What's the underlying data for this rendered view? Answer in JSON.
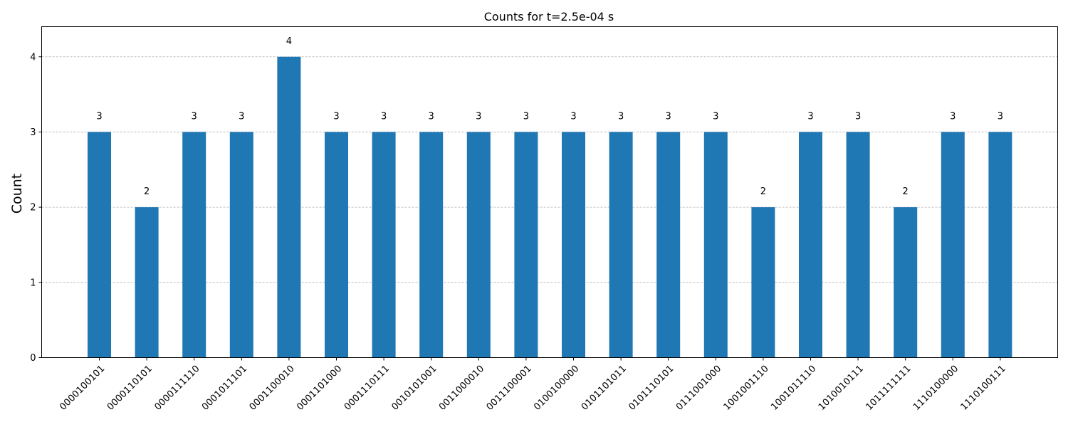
{
  "chart_data": {
    "type": "bar",
    "title": "Counts for t=2.5e-04 s",
    "xlabel": "",
    "ylabel": "Count",
    "categories": [
      "0000100101",
      "0000110101",
      "0000111110",
      "0001011101",
      "0001100010",
      "0001101000",
      "0001110111",
      "0010101001",
      "0011000010",
      "0011100001",
      "0100100000",
      "0101101011",
      "0101110101",
      "0111001000",
      "1001001110",
      "1001011110",
      "1010010111",
      "1011111111",
      "1110100000",
      "1110100111"
    ],
    "values": [
      3,
      2,
      3,
      3,
      4,
      3,
      3,
      3,
      3,
      3,
      3,
      3,
      3,
      3,
      2,
      3,
      3,
      2,
      3,
      3
    ],
    "ylim": [
      0,
      4.4
    ],
    "yticks": [
      0,
      1,
      2,
      3,
      4
    ],
    "grid": "y-dashed",
    "bar_color": "#1f77b4",
    "data_labels": [
      "3",
      "2",
      "3",
      "3",
      "4",
      "3",
      "3",
      "3",
      "3",
      "3",
      "3",
      "3",
      "3",
      "3",
      "2",
      "3",
      "3",
      "2",
      "3",
      "3"
    ]
  }
}
